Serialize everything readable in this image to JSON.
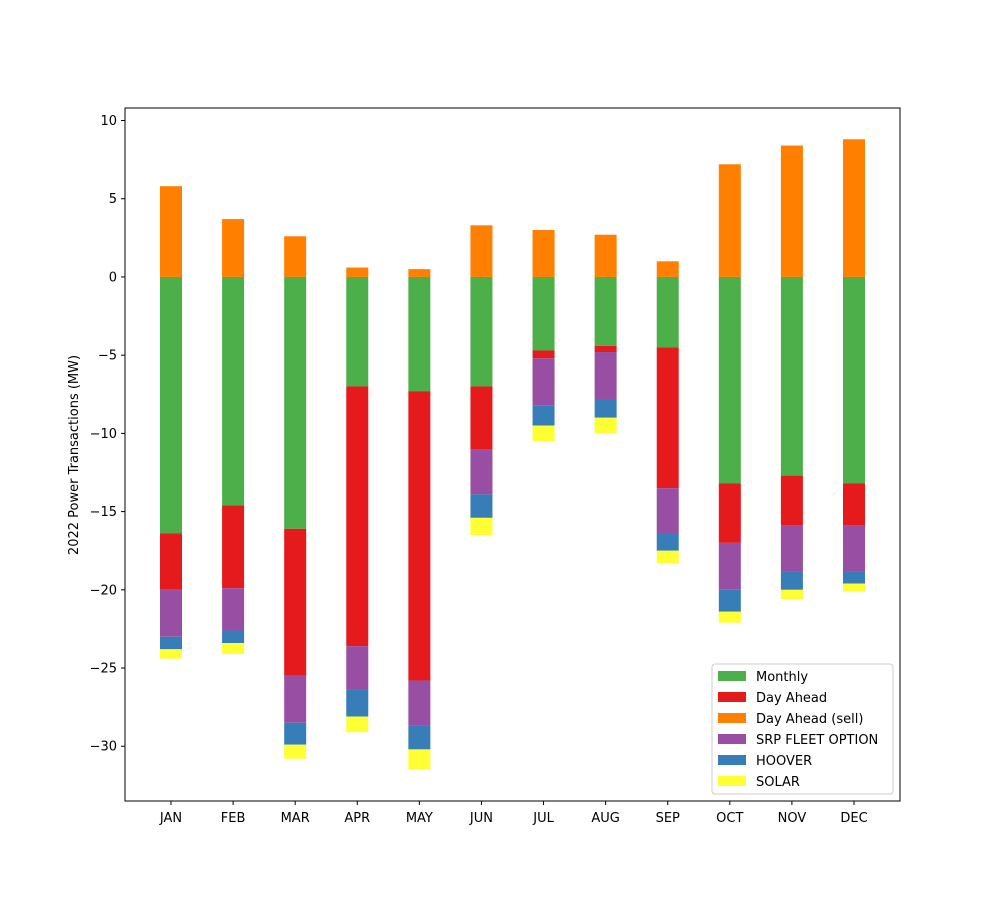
{
  "chart_data": {
    "type": "bar",
    "stacked": true,
    "title": "",
    "xlabel": "",
    "ylabel": "2022 Power Transactions (MW)",
    "ylim": [
      -33.5,
      10.8
    ],
    "yticks": [
      10,
      5,
      0,
      -5,
      -10,
      -15,
      -20,
      -25,
      -30
    ],
    "grid": false,
    "legend_position": "lower-right",
    "categories": [
      "JAN",
      "FEB",
      "MAR",
      "APR",
      "MAY",
      "JUN",
      "JUL",
      "AUG",
      "SEP",
      "OCT",
      "NOV",
      "DEC"
    ],
    "series": [
      {
        "name": "Monthly",
        "color": "#4daf4a",
        "values": [
          -16.4,
          -14.6,
          -16.1,
          -7.0,
          -7.3,
          -7.0,
          -4.7,
          -4.4,
          -4.5,
          -13.2,
          -12.7,
          -13.2
        ]
      },
      {
        "name": "Day Ahead",
        "color": "#e41a1c",
        "values": [
          -3.6,
          -5.3,
          -9.4,
          -16.6,
          -18.5,
          -4.0,
          -0.5,
          -0.4,
          -9.0,
          -3.8,
          -3.2,
          -2.7
        ]
      },
      {
        "name": "Day Ahead (sell)",
        "color": "#ff7f00",
        "values": [
          5.8,
          3.7,
          2.6,
          0.6,
          0.5,
          3.3,
          3.0,
          2.7,
          1.0,
          7.2,
          8.4,
          8.8
        ]
      },
      {
        "name": "SRP FLEET OPTION",
        "color": "#984ea3",
        "values": [
          -3.0,
          -2.7,
          -3.0,
          -2.8,
          -2.9,
          -2.9,
          -3.0,
          -3.0,
          -2.9,
          -3.0,
          -2.9,
          -2.9
        ]
      },
      {
        "name": "HOOVER",
        "color": "#377eb8",
        "values": [
          -0.8,
          -0.8,
          -1.4,
          -1.7,
          -1.5,
          -1.5,
          -1.3,
          -1.2,
          -1.1,
          -1.4,
          -1.2,
          -0.8
        ]
      },
      {
        "name": "SOLAR",
        "color": "#ffff33",
        "values": [
          -0.6,
          -0.7,
          -0.9,
          -1.0,
          -1.3,
          -1.1,
          -1.0,
          -1.0,
          -0.8,
          -0.7,
          -0.6,
          -0.5
        ]
      }
    ],
    "stack_order": [
      "Monthly",
      "Day Ahead",
      "SRP FLEET OPTION",
      "HOOVER",
      "SOLAR"
    ],
    "positive_series": [
      "Day Ahead (sell)"
    ]
  }
}
